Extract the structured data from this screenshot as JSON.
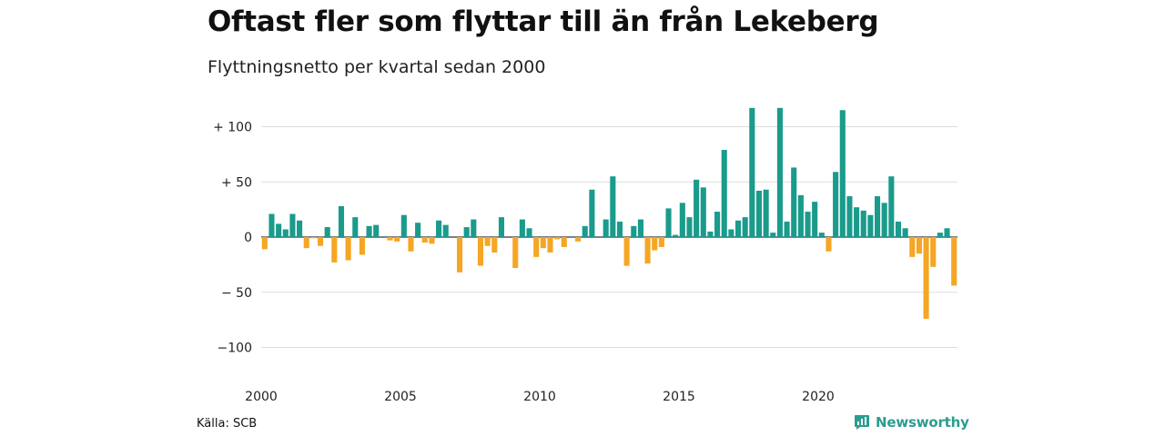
{
  "chart_data": {
    "type": "bar",
    "title": "Oftast fler som flyttar till än från Lekeberg",
    "subtitle": "Flyttningsnetto per kvartal sedan 2000",
    "x_start": "2000 Q1",
    "x_frequency": "quarter",
    "values": [
      -11,
      21,
      12,
      7,
      21,
      15,
      -10,
      -1,
      -8,
      9,
      -23,
      28,
      -21,
      18,
      -16,
      10,
      11,
      0,
      -3,
      -4,
      20,
      -13,
      13,
      -5,
      -6,
      15,
      11,
      0,
      -32,
      9,
      16,
      -26,
      -8,
      -14,
      18,
      0,
      -28,
      16,
      8,
      -18,
      -10,
      -14,
      -2,
      -9,
      0,
      -4,
      10,
      43,
      0,
      16,
      55,
      14,
      -26,
      10,
      16,
      -24,
      -12,
      -9,
      26,
      2,
      31,
      18,
      52,
      45,
      5,
      23,
      79,
      7,
      15,
      18,
      117,
      42,
      43,
      4,
      117,
      14,
      63,
      38,
      23,
      32,
      4,
      -13,
      59,
      115,
      37,
      27,
      24,
      20,
      37,
      31,
      55,
      14,
      8,
      -18,
      -15,
      -74,
      -27,
      4,
      8,
      -44
    ],
    "yticks": [
      100,
      50,
      0,
      -50,
      -100
    ],
    "ytick_labels": [
      "+ 100",
      "+ 50",
      "0",
      "− 50",
      "−100"
    ],
    "ylim": [
      -110,
      120
    ],
    "xticks": [
      "2000",
      "2005",
      "2010",
      "2015",
      "2020"
    ],
    "colors": {
      "positive": "#1a9b8c",
      "negative": "#f5a623",
      "grid": "#dddddd"
    },
    "grid": true,
    "legend": "none"
  },
  "footer": {
    "source": "Källa: SCB",
    "brand": "Newsworthy",
    "brand_icon": "newsworthy-logo-icon"
  }
}
